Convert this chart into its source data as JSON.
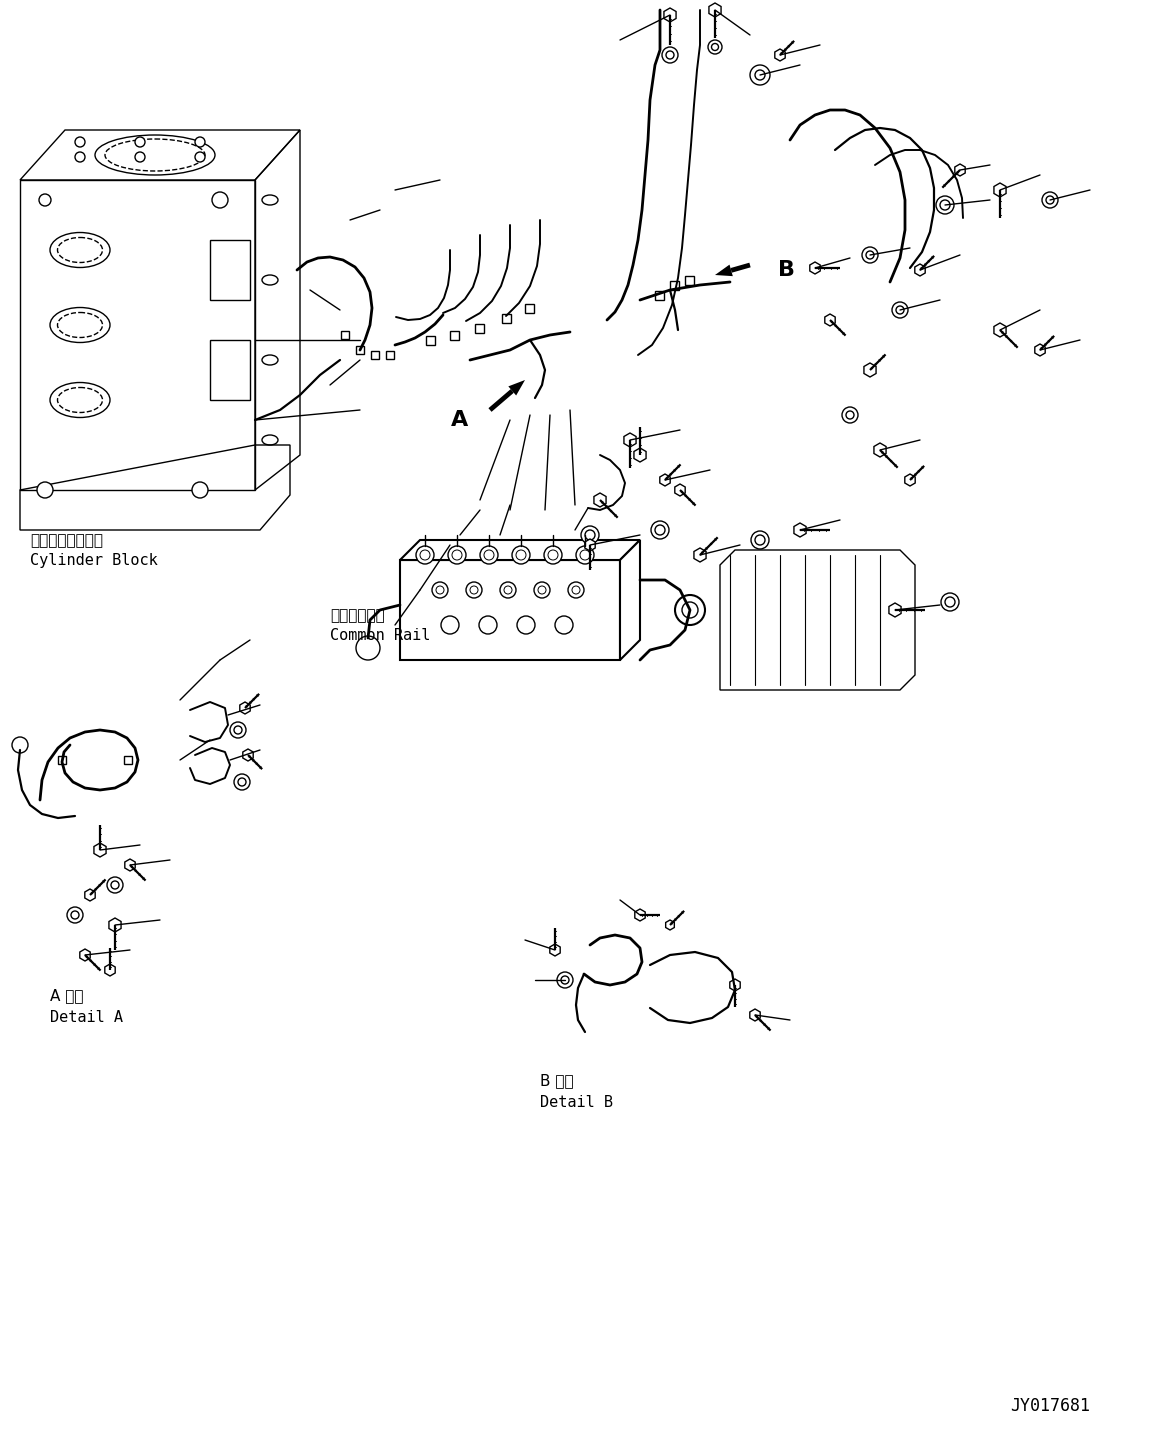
{
  "figsize": [
    11.63,
    14.3
  ],
  "dpi": 100,
  "bg_color": "#ffffff",
  "labels": {
    "cylinder_block_jp": "シリンダブロック",
    "cylinder_block_en": "Cylinder Block",
    "common_rail_jp": "コモンレール",
    "common_rail_en": "Common Rail",
    "detail_a_jp": "A 詳細",
    "detail_a_en": "Detail A",
    "detail_b_jp": "B 詳細",
    "detail_b_en": "Detail B",
    "arrow_a": "A",
    "arrow_b": "B",
    "part_number": "JY017681"
  },
  "font_sizes": {
    "label": 9,
    "label_large": 11,
    "arrow_label": 16,
    "part_number": 9
  },
  "color": "#000000",
  "lw": 1.0,
  "lw_thick": 1.5,
  "lw_pipe": 2.0
}
